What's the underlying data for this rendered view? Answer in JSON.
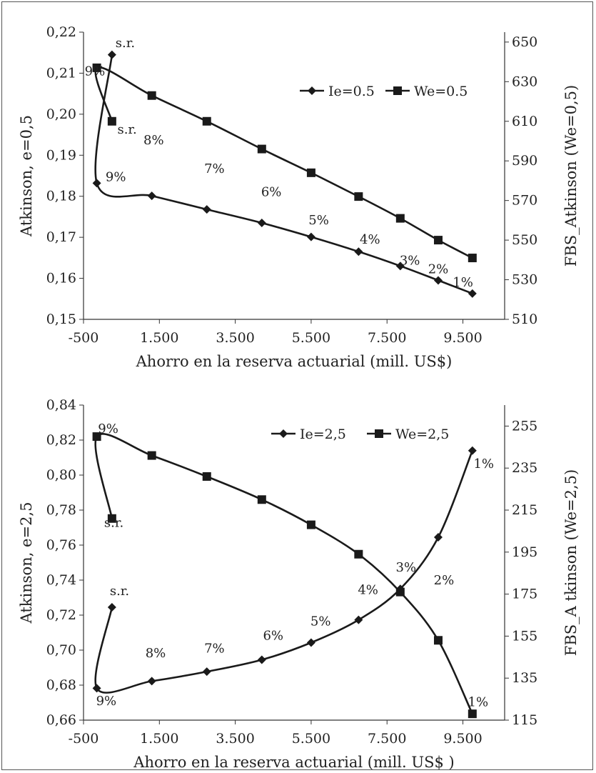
{
  "chart_data": [
    {
      "type": "line",
      "xlabel": "Ahorro en la reserva actuarial (mill. US$)",
      "ylabel": "Atkinson, e=0,5",
      "y2label": "FBS_Atkinson (We=0,5)",
      "xticks": [
        "-500",
        "1.500",
        "3.500",
        "5.500",
        "7.500",
        "9.500"
      ],
      "xlim": [
        -500,
        10600
      ],
      "ylim": [
        0.15,
        0.22
      ],
      "yticks": [
        "0,15",
        "0,16",
        "0,17",
        "0,18",
        "0,19",
        "0,20",
        "0,21",
        "0,22"
      ],
      "y2lim": [
        510,
        655
      ],
      "y2ticks": [
        "510",
        "530",
        "550",
        "570",
        "590",
        "610",
        "630",
        "650"
      ],
      "legend_position": "top-right",
      "series": [
        {
          "name": "Ie=0.5",
          "marker": "diamond",
          "axis": "left",
          "x": [
            250,
            -150,
            1300,
            2750,
            4200,
            5500,
            6750,
            7850,
            8850,
            9750
          ],
          "y": [
            0.2145,
            0.1832,
            0.1801,
            0.1768,
            0.1735,
            0.1701,
            0.1665,
            0.163,
            0.1595,
            0.1563
          ]
        },
        {
          "name": "We=0.5",
          "marker": "square",
          "axis": "right",
          "x": [
            250,
            -150,
            1300,
            2750,
            4200,
            5500,
            6750,
            7850,
            8850,
            9750
          ],
          "y": [
            610,
            637,
            623,
            610,
            596,
            584,
            572,
            561,
            550,
            541
          ]
        }
      ],
      "annotations": [
        {
          "text": "s.r.",
          "x": 600,
          "y": 0.2163
        },
        {
          "text": "9%",
          "x": -200,
          "y": 0.2095
        },
        {
          "text": "s.r.",
          "x": 650,
          "y": 0.1953
        },
        {
          "text": "9%",
          "x": 350,
          "y": 0.1837
        },
        {
          "text": "8%",
          "x": 1350,
          "y": 0.1927
        },
        {
          "text": "7%",
          "x": 2950,
          "y": 0.1857
        },
        {
          "text": "6%",
          "x": 4450,
          "y": 0.18
        },
        {
          "text": "5%",
          "x": 5700,
          "y": 0.1732
        },
        {
          "text": "4%",
          "x": 7050,
          "y": 0.1685
        },
        {
          "text": "3%",
          "x": 8100,
          "y": 0.1633
        },
        {
          "text": "2%",
          "x": 8850,
          "y": 0.1612
        },
        {
          "text": "1%",
          "x": 9500,
          "y": 0.158
        }
      ],
      "series_colors": [
        "#1a1a1a",
        "#1a1a1a"
      ]
    },
    {
      "type": "line",
      "xlabel": "Ahorro en la reserva actuarial (mill. US$ )",
      "ylabel": "Atkinson, e=2,5",
      "y2label": "FBS_A tkinson (We=2,5)",
      "xticks": [
        "-500",
        "1.500",
        "3.500",
        "5.500",
        "7.500",
        "9.500"
      ],
      "xlim": [
        -500,
        10600
      ],
      "ylim": [
        0.66,
        0.84
      ],
      "yticks": [
        "0,66",
        "0,68",
        "0,70",
        "0,72",
        "0,74",
        "0,76",
        "0,78",
        "0,80",
        "0,82",
        "0,84"
      ],
      "y2lim": [
        115,
        265
      ],
      "y2ticks": [
        "115",
        "135",
        "155",
        "175",
        "195",
        "215",
        "235",
        "255"
      ],
      "legend_position": "top-right",
      "series": [
        {
          "name": "Ie=2,5",
          "marker": "diamond",
          "axis": "left",
          "x": [
            250,
            -150,
            1300,
            2750,
            4200,
            5500,
            6750,
            7850,
            8850,
            9750
          ],
          "y": [
            0.7245,
            0.6782,
            0.6823,
            0.6877,
            0.6945,
            0.7043,
            0.7173,
            0.735,
            0.7645,
            0.814
          ]
        },
        {
          "name": "We=2,5",
          "marker": "square",
          "axis": "right",
          "x": [
            250,
            -150,
            1300,
            2750,
            4200,
            5500,
            6750,
            7850,
            8850,
            9750
          ],
          "y": [
            211,
            250,
            241,
            231,
            220,
            208,
            194,
            176,
            153,
            118
          ]
        }
      ],
      "annotations": [
        {
          "text": "9%",
          "x": 150,
          "y": 0.824
        },
        {
          "text": "s.r.",
          "x": 300,
          "y": 0.7705
        },
        {
          "text": "s.r.",
          "x": 450,
          "y": 0.7315
        },
        {
          "text": "8%",
          "x": 1400,
          "y": 0.696
        },
        {
          "text": "7%",
          "x": 2950,
          "y": 0.6985
        },
        {
          "text": "6%",
          "x": 4500,
          "y": 0.706
        },
        {
          "text": "5%",
          "x": 5750,
          "y": 0.714
        },
        {
          "text": "4%",
          "x": 7000,
          "y": 0.732
        },
        {
          "text": "3%",
          "x": 8000,
          "y": 0.745
        },
        {
          "text": "2%",
          "x": 9000,
          "y": 0.7375
        },
        {
          "text": "1%",
          "x": 10050,
          "y": 0.804
        },
        {
          "text": "1%",
          "x": 9900,
          "y": 0.668
        },
        {
          "text": "9%",
          "x": 100,
          "y": 0.6685
        }
      ],
      "series_colors": [
        "#1a1a1a",
        "#1a1a1a"
      ]
    }
  ]
}
